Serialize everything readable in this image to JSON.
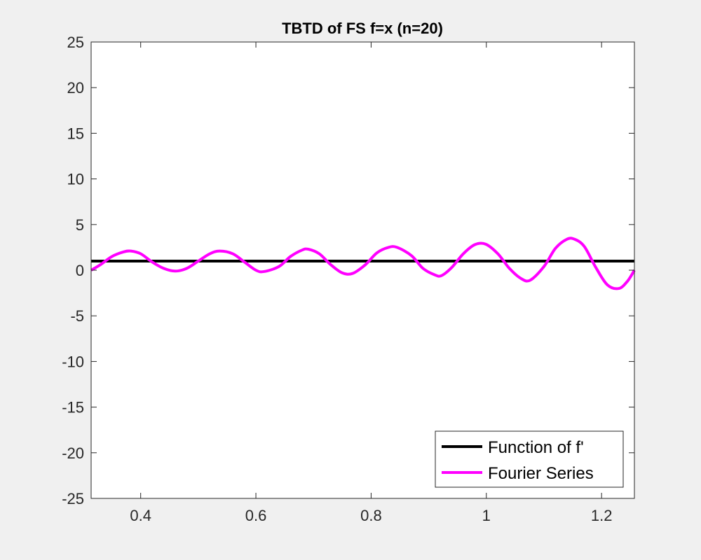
{
  "chart_data": {
    "type": "line",
    "title": "TBTD of FS f=x (n=20)",
    "xlabel": "",
    "ylabel": "",
    "xlim": [
      0.314,
      1.257
    ],
    "ylim": [
      -25,
      25
    ],
    "xticks": [
      0.4,
      0.6,
      0.8,
      1.0,
      1.2
    ],
    "xtick_labels": [
      "0.4",
      "0.6",
      "0.8",
      "1",
      "1.2"
    ],
    "yticks": [
      -25,
      -20,
      -15,
      -10,
      -5,
      0,
      5,
      10,
      15,
      20,
      25
    ],
    "ytick_labels": [
      "-25",
      "-20",
      "-15",
      "-10",
      "-5",
      "0",
      "5",
      "10",
      "15",
      "20",
      "25"
    ],
    "grid": false,
    "legend_position": "bottom-right",
    "series": [
      {
        "name": "Function of f'",
        "color": "#000000",
        "x": [
          0.314,
          1.257
        ],
        "y": [
          1,
          1
        ]
      },
      {
        "name": "Fourier Series",
        "color": "#ff00ff",
        "x": [
          0.314,
          0.33,
          0.35,
          0.37,
          0.383,
          0.4,
          0.42,
          0.44,
          0.46,
          0.48,
          0.5,
          0.52,
          0.537,
          0.56,
          0.58,
          0.6,
          0.614,
          0.64,
          0.66,
          0.68,
          0.691,
          0.71,
          0.73,
          0.75,
          0.768,
          0.79,
          0.81,
          0.83,
          0.845,
          0.87,
          0.89,
          0.91,
          0.922,
          0.94,
          0.96,
          0.98,
          0.999,
          1.02,
          1.04,
          1.06,
          1.076,
          1.1,
          1.12,
          1.14,
          1.153,
          1.17,
          1.19,
          1.21,
          1.23,
          1.245,
          1.257
        ],
        "y": [
          0.0,
          0.6,
          1.5,
          2.0,
          2.1,
          1.8,
          0.9,
          0.2,
          -0.1,
          0.2,
          1.0,
          1.8,
          2.1,
          1.8,
          0.9,
          0.0,
          -0.15,
          0.4,
          1.5,
          2.2,
          2.3,
          1.8,
          0.6,
          -0.3,
          -0.35,
          0.6,
          1.9,
          2.5,
          2.5,
          1.6,
          0.2,
          -0.5,
          -0.6,
          0.3,
          1.8,
          2.8,
          2.85,
          1.8,
          0.2,
          -0.9,
          -1.1,
          0.4,
          2.4,
          3.4,
          3.4,
          2.6,
          0.3,
          -1.6,
          -2.0,
          -1.2,
          0.0
        ]
      }
    ]
  }
}
